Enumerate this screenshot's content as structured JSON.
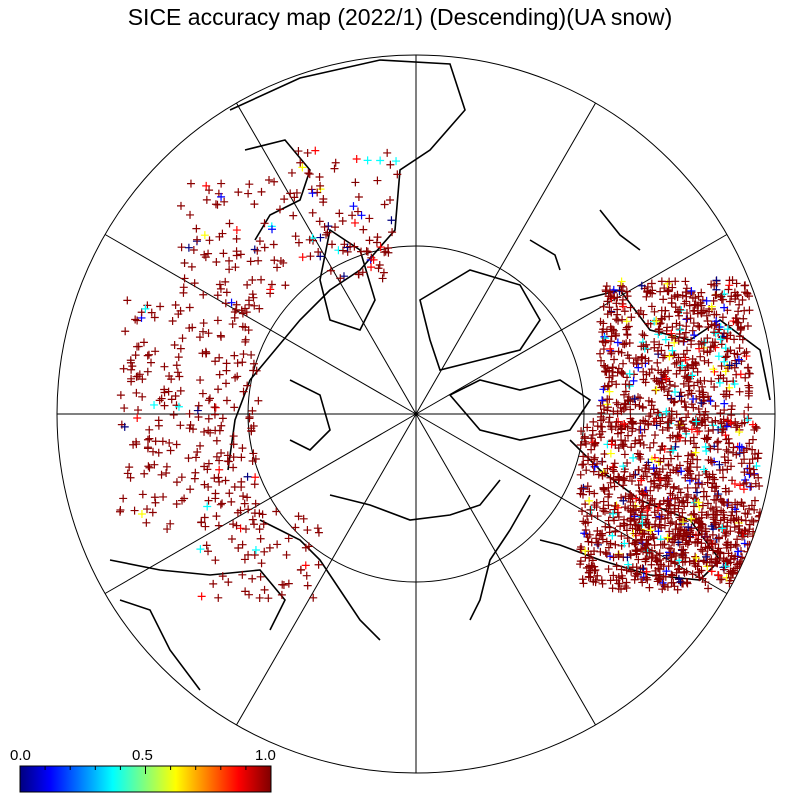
{
  "title": "SICE accuracy map (2022/1) (Descending)(UA snow)",
  "colorbar": {
    "min_label": "0.0",
    "mid_label": "0.5",
    "max_label": "1.0",
    "range": [
      0.0,
      1.0
    ],
    "colormap": "jet",
    "colors": [
      "#00007f",
      "#0000ff",
      "#00ffff",
      "#ffff00",
      "#ff0000",
      "#7f0000"
    ]
  },
  "map": {
    "projection": "north-polar-stereographic",
    "latitude_circles_deg": [
      60
    ],
    "meridian_spacing_deg": 30,
    "marker": "plus",
    "dominant_value_color": "#8b0000"
  }
}
